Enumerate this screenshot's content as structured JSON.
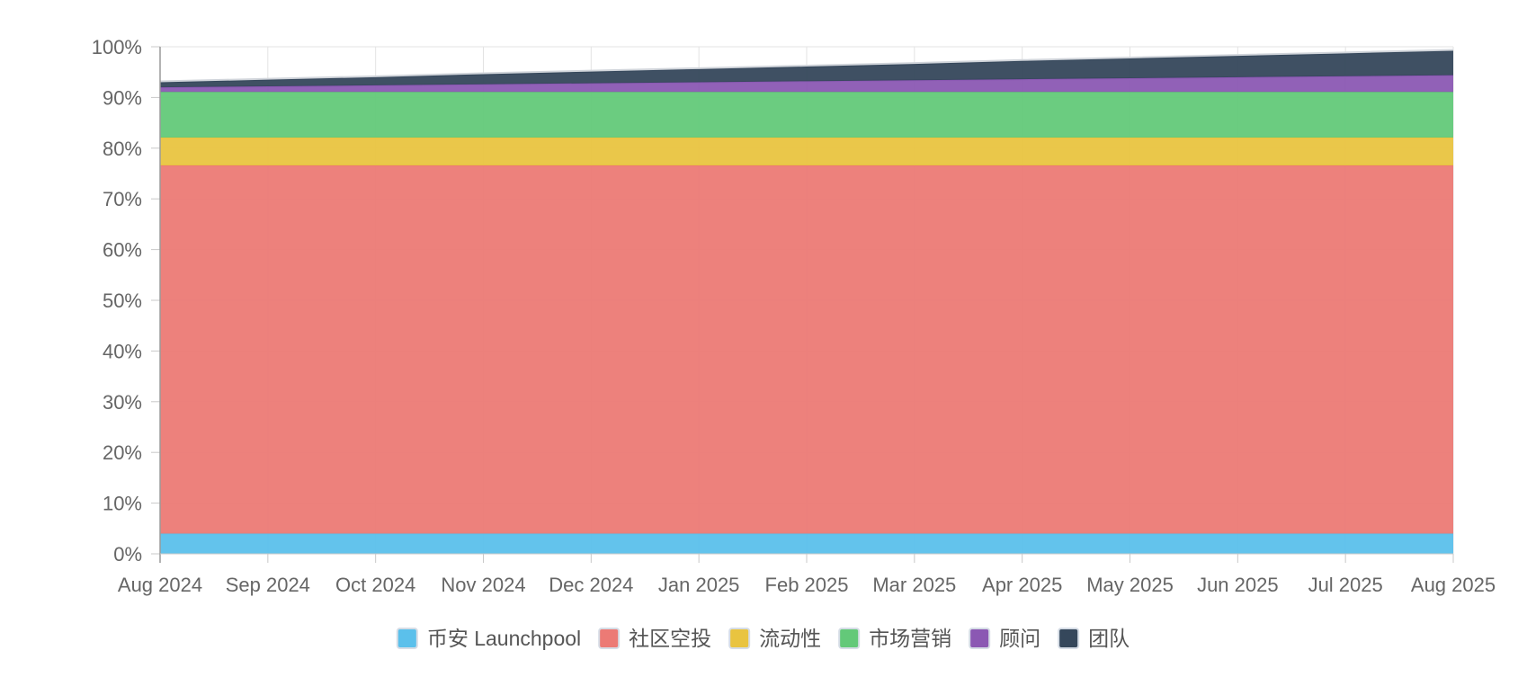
{
  "chart_data": {
    "type": "area",
    "stacked": true,
    "title": "",
    "xlabel": "",
    "ylabel": "",
    "ylim": [
      0,
      100
    ],
    "y_ticks": [
      "0%",
      "10%",
      "20%",
      "30%",
      "40%",
      "50%",
      "60%",
      "70%",
      "80%",
      "90%",
      "100%"
    ],
    "x": [
      "Aug 2024",
      "Sep 2024",
      "Oct 2024",
      "Nov 2024",
      "Dec 2024",
      "Jan 2025",
      "Feb 2025",
      "Mar 2025",
      "Apr 2025",
      "May 2025",
      "Jun 2025",
      "Jul 2025",
      "Aug 2025"
    ],
    "grid": true,
    "legend_position": "bottom-center",
    "series": [
      {
        "name": "币安 Launchpool",
        "color": "#5bc0eb",
        "values": [
          4,
          4,
          4,
          4,
          4,
          4,
          4,
          4,
          4,
          4,
          4,
          4,
          4
        ]
      },
      {
        "name": "社区空投",
        "color": "#ec7a75",
        "values": [
          72.6,
          72.6,
          72.6,
          72.6,
          72.6,
          72.6,
          72.6,
          72.6,
          72.6,
          72.6,
          72.6,
          72.6,
          72.6
        ]
      },
      {
        "name": "流动性",
        "color": "#e9c440",
        "values": [
          5.5,
          5.5,
          5.5,
          5.5,
          5.5,
          5.5,
          5.5,
          5.5,
          5.5,
          5.5,
          5.5,
          5.5,
          5.5
        ]
      },
      {
        "name": "市场营销",
        "color": "#63c979",
        "values": [
          9,
          9,
          9,
          9,
          9,
          9,
          9,
          9,
          9,
          9,
          9,
          9,
          9
        ]
      },
      {
        "name": "顾问",
        "color": "#8b58b3",
        "values": [
          0.9,
          1.1,
          1.3,
          1.5,
          1.7,
          1.9,
          2.1,
          2.3,
          2.5,
          2.7,
          2.9,
          3.1,
          3.3
        ]
      },
      {
        "name": "团队",
        "color": "#35475b",
        "values": [
          1.0,
          1.3,
          1.6,
          2.0,
          2.3,
          2.6,
          2.9,
          3.2,
          3.6,
          3.9,
          4.2,
          4.5,
          4.8
        ]
      }
    ]
  }
}
